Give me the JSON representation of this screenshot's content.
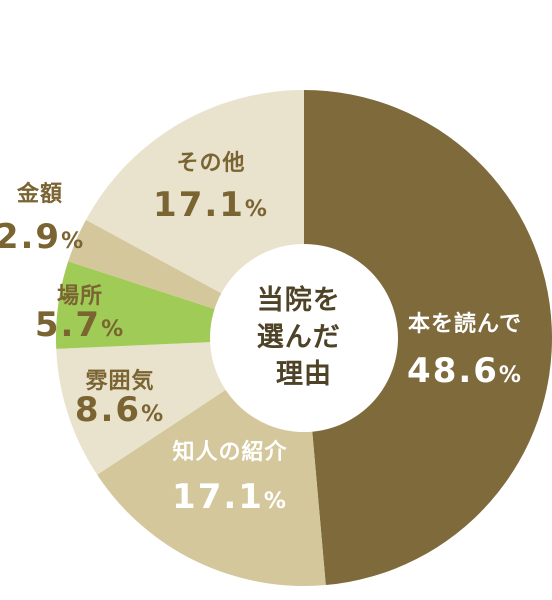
{
  "chart_data": {
    "type": "pie",
    "title": "",
    "center_label": [
      "当院を",
      "選んだ",
      "理由"
    ],
    "unit": "%",
    "slices": [
      {
        "label": "本を読んで",
        "value": 48.6,
        "color": "#7e6a3b",
        "text_color": "#ffffff"
      },
      {
        "label": "知人の紹介",
        "value": 17.1,
        "color": "#d4c79c",
        "text_color": "#ffffff"
      },
      {
        "label": "雰囲気",
        "value": 8.6,
        "color": "#e9e2cd",
        "text_color": "#7a6432"
      },
      {
        "label": "場所",
        "value": 5.7,
        "color": "#9fcb56",
        "text_color": "#7a6432"
      },
      {
        "label": "金額",
        "value": 2.9,
        "color": "#d4c79c",
        "text_color": "#7a6432"
      },
      {
        "label": "その他",
        "value": 17.1,
        "color": "#e9e2cd",
        "text_color": "#7a6432"
      }
    ]
  }
}
